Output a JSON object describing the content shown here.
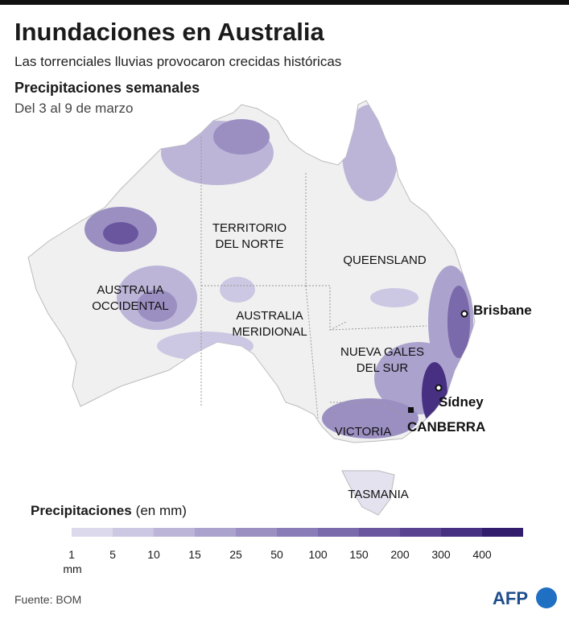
{
  "header": {
    "title": "Inundaciones en Australia",
    "subtitle": "Las torrenciales lluvias provocaron crecidas históricas",
    "section": "Precipitaciones semanales",
    "period": "Del 3 al 9 de marzo"
  },
  "map": {
    "regions": [
      {
        "lines": [
          "TERRITORIO",
          "DEL NORTE"
        ]
      },
      {
        "lines": [
          "QUEENSLAND"
        ]
      },
      {
        "lines": [
          "AUSTRALIA",
          "OCCIDENTAL"
        ]
      },
      {
        "lines": [
          "AUSTRALIA",
          "MERIDIONAL"
        ]
      },
      {
        "lines": [
          "NUEVA GALES",
          "DEL SUR"
        ]
      },
      {
        "lines": [
          "VICTORIA"
        ]
      },
      {
        "lines": [
          "TASMANIA"
        ]
      }
    ],
    "cities": [
      "Brisbane",
      "Sídney",
      "CANBERRA"
    ]
  },
  "legend": {
    "title": "Precipitaciones",
    "unit": "(en mm)",
    "ticks": [
      1,
      5,
      10,
      15,
      25,
      50,
      100,
      150,
      200,
      300,
      400
    ],
    "tick_unit": "mm",
    "colors": [
      "#ffffff",
      "#dcd9ec",
      "#ccc7e2",
      "#bcb5d8",
      "#aba2cd",
      "#9b8fc2",
      "#8a7cb7",
      "#7a69ab",
      "#6a569f",
      "#594391",
      "#473082",
      "#321c6c"
    ]
  },
  "footer": {
    "source": "Fuente: BOM",
    "logo": "AFP"
  }
}
